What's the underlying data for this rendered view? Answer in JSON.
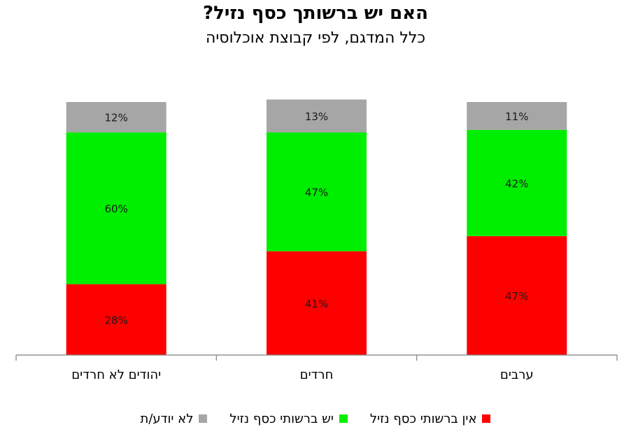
{
  "chart_data": {
    "type": "stacked-bar",
    "title": "האם יש ברשותך כסף נזיל?",
    "subtitle": "כלל המדגם, לפי קבוצת אוכלוסיה",
    "categories": [
      "יהודים לא חרדים",
      "חרדים",
      "ערבים"
    ],
    "series": [
      {
        "name": "אין ברשותי כסף נזיל",
        "color": "#ff0000",
        "values": [
          28,
          41,
          47
        ],
        "labels": [
          "28%",
          "41%",
          "47%"
        ]
      },
      {
        "name": "יש ברשותי כסף נזיל",
        "color": "#00ee00",
        "values": [
          60,
          47,
          42
        ],
        "labels": [
          "60%",
          "47%",
          "42%"
        ]
      },
      {
        "name": "לא יודע/ת",
        "color": "#a6a6a6",
        "values": [
          12,
          13,
          11
        ],
        "labels": [
          "12%",
          "13%",
          "11%"
        ]
      }
    ],
    "ylim": [
      0,
      100
    ],
    "grid": false,
    "legend_position": "bottom"
  }
}
